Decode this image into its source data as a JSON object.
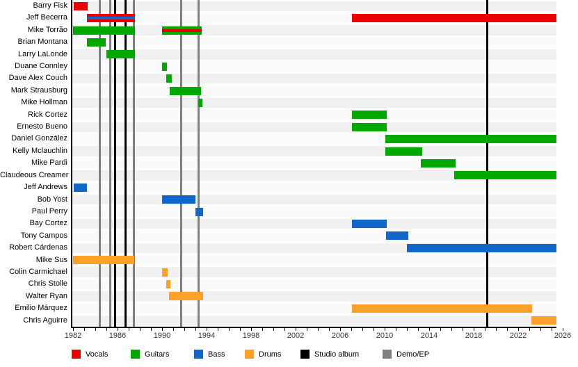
{
  "chart_data": {
    "type": "bar",
    "subtype": "gantt-timeline-band-members",
    "x_axis": {
      "min_year": 1982,
      "max_year_visible": 2025.45,
      "tick_every_years": 1,
      "label_every_years": 4,
      "tick_labels": [
        "1982",
        "1986",
        "1990",
        "1994",
        "1998",
        "2002",
        "2006",
        "2010",
        "2014",
        "2018",
        "2022",
        "2026"
      ]
    },
    "roles": {
      "vocals": {
        "label": "Vocals",
        "color": "#ed0000"
      },
      "guitars": {
        "label": "Guitars",
        "color": "#00a800"
      },
      "bass": {
        "label": "Bass",
        "color": "#1266c8"
      },
      "drums": {
        "label": "Drums",
        "color": "#fba129"
      }
    },
    "event_types": {
      "album": {
        "label": "Studio album",
        "color": "#000000"
      },
      "demo": {
        "label": "Demo/EP",
        "color": "#808080"
      }
    },
    "legend_order": [
      "vocals",
      "guitars",
      "bass",
      "drums",
      "album",
      "demo"
    ],
    "members": [
      {
        "name": "Barry Fisk",
        "spans": [
          {
            "from": 1982.05,
            "to": 1983.3,
            "roles": [
              "vocals"
            ]
          }
        ]
      },
      {
        "name": "Jeff Becerra",
        "spans": [
          {
            "from": 1983.25,
            "to": 1987.55,
            "roles": [
              "vocals",
              "bass"
            ]
          },
          {
            "from": 2007.05,
            "to": "present",
            "roles": [
              "vocals"
            ]
          }
        ]
      },
      {
        "name": "Mike Torrão",
        "spans": [
          {
            "from": 1982.0,
            "to": 1987.55,
            "roles": [
              "guitars"
            ]
          },
          {
            "from": 1990.0,
            "to": 1993.55,
            "roles": [
              "guitars",
              "vocals"
            ]
          }
        ]
      },
      {
        "name": "Brian Montana",
        "spans": [
          {
            "from": 1983.25,
            "to": 1984.95,
            "roles": [
              "guitars"
            ]
          }
        ]
      },
      {
        "name": "Larry LaLonde",
        "spans": [
          {
            "from": 1985.0,
            "to": 1987.55,
            "roles": [
              "guitars"
            ]
          }
        ]
      },
      {
        "name": "Duane Connley",
        "spans": [
          {
            "from": 1990.0,
            "to": 1990.45,
            "roles": [
              "guitars"
            ]
          }
        ]
      },
      {
        "name": "Dave Alex Couch",
        "spans": [
          {
            "from": 1990.4,
            "to": 1990.9,
            "roles": [
              "guitars"
            ]
          }
        ]
      },
      {
        "name": "Mark Strausburg",
        "spans": [
          {
            "from": 1990.7,
            "to": 1993.5,
            "roles": [
              "guitars"
            ]
          }
        ]
      },
      {
        "name": "Mike Hollman",
        "spans": [
          {
            "from": 1993.25,
            "to": 1993.6,
            "roles": [
              "guitars"
            ]
          }
        ]
      },
      {
        "name": "Rick Cortez",
        "spans": [
          {
            "from": 2007.05,
            "to": 2010.2,
            "roles": [
              "guitars"
            ]
          }
        ]
      },
      {
        "name": "Ernesto Bueno",
        "spans": [
          {
            "from": 2007.05,
            "to": 2010.2,
            "roles": [
              "guitars"
            ]
          }
        ]
      },
      {
        "name": "Daniel González",
        "spans": [
          {
            "from": 2010.05,
            "to": "present",
            "roles": [
              "guitars"
            ]
          }
        ]
      },
      {
        "name": "Kelly Mclauchlin",
        "spans": [
          {
            "from": 2010.05,
            "to": 2013.4,
            "roles": [
              "guitars"
            ]
          }
        ]
      },
      {
        "name": "Mike Pardi",
        "spans": [
          {
            "from": 2013.25,
            "to": 2016.4,
            "roles": [
              "guitars"
            ]
          }
        ]
      },
      {
        "name": "Claudeous Creamer",
        "spans": [
          {
            "from": 2016.25,
            "to": "present",
            "roles": [
              "guitars"
            ]
          }
        ]
      },
      {
        "name": "Jeff Andrews",
        "spans": [
          {
            "from": 1982.05,
            "to": 1983.25,
            "roles": [
              "bass"
            ]
          }
        ]
      },
      {
        "name": "Bob Yost",
        "spans": [
          {
            "from": 1990.0,
            "to": 1993.0,
            "roles": [
              "bass"
            ]
          }
        ]
      },
      {
        "name": "Paul Perry",
        "spans": [
          {
            "from": 1993.0,
            "to": 1993.7,
            "roles": [
              "bass"
            ]
          }
        ]
      },
      {
        "name": "Bay Cortez",
        "spans": [
          {
            "from": 2007.05,
            "to": 2010.2,
            "roles": [
              "bass"
            ]
          }
        ]
      },
      {
        "name": "Tony Campos",
        "spans": [
          {
            "from": 2010.1,
            "to": 2012.1,
            "roles": [
              "bass"
            ]
          }
        ]
      },
      {
        "name": "Robert Cárdenas",
        "spans": [
          {
            "from": 2012.0,
            "to": "present",
            "roles": [
              "bass"
            ]
          }
        ]
      },
      {
        "name": "Mike Sus",
        "spans": [
          {
            "from": 1982.0,
            "to": 1987.5,
            "roles": [
              "drums"
            ]
          }
        ]
      },
      {
        "name": "Colin Carmichael",
        "spans": [
          {
            "from": 1990.0,
            "to": 1990.5,
            "roles": [
              "drums"
            ]
          }
        ]
      },
      {
        "name": "Chris Stolle",
        "spans": [
          {
            "from": 1990.4,
            "to": 1990.75,
            "roles": [
              "drums"
            ]
          }
        ]
      },
      {
        "name": "Walter Ryan",
        "spans": [
          {
            "from": 1990.65,
            "to": 1993.7,
            "roles": [
              "drums"
            ]
          }
        ]
      },
      {
        "name": "Emilio Márquez",
        "spans": [
          {
            "from": 2007.05,
            "to": 2023.25,
            "roles": [
              "drums"
            ]
          }
        ]
      },
      {
        "name": "Chris Aguirre",
        "spans": [
          {
            "from": 2023.2,
            "to": "present",
            "roles": [
              "drums"
            ]
          }
        ]
      }
    ],
    "events": [
      {
        "year": 1984.4,
        "type": "demo"
      },
      {
        "year": 1985.35,
        "type": "demo"
      },
      {
        "year": 1985.8,
        "type": "album"
      },
      {
        "year": 1986.7,
        "type": "album"
      },
      {
        "year": 1987.45,
        "type": "demo"
      },
      {
        "year": 1991.7,
        "type": "demo"
      },
      {
        "year": 1993.3,
        "type": "demo"
      },
      {
        "year": 2019.2,
        "type": "album"
      }
    ],
    "style": {
      "row_stripe_even": "#f0f0f0",
      "row_stripe_odd": "#fafafa",
      "axis_color": "#000000",
      "tick_label_color": "#383838"
    }
  }
}
